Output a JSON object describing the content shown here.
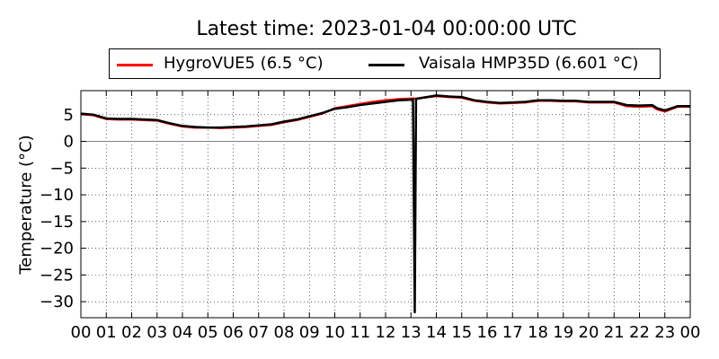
{
  "chart_data": {
    "type": "line",
    "title": "Latest time: 2023-01-04 00:00:00 UTC",
    "xlabel": "",
    "ylabel": "Temperature (°C)",
    "xlim": [
      0,
      24
    ],
    "ylim": [
      -33,
      9.5
    ],
    "x_ticks": [
      "00",
      "01",
      "02",
      "03",
      "04",
      "05",
      "06",
      "07",
      "08",
      "09",
      "10",
      "11",
      "12",
      "13",
      "14",
      "15",
      "16",
      "17",
      "18",
      "19",
      "20",
      "21",
      "22",
      "23",
      "00"
    ],
    "y_ticks": [
      "5",
      "0",
      "−5",
      "−10",
      "−15",
      "−20",
      "−25",
      "−30"
    ],
    "y_tick_values": [
      5,
      0,
      -5,
      -10,
      -15,
      -20,
      -25,
      -30
    ],
    "grid": true,
    "zero_line": true,
    "legend_position": "top",
    "series": [
      {
        "name": "HygroVUE5 (6.5 °C)",
        "color": "#ff0000",
        "x": [
          0,
          0.5,
          1,
          1.5,
          2,
          2.5,
          3,
          3.5,
          4,
          4.5,
          5,
          5.5,
          6,
          6.5,
          7,
          7.5,
          8,
          8.5,
          9,
          9.5,
          10,
          10.5,
          11,
          11.5,
          12,
          12.5,
          13,
          13.1,
          13.2,
          13.5,
          14,
          14.5,
          15,
          15.5,
          16,
          16.5,
          17,
          17.5,
          18,
          18.5,
          19,
          19.5,
          20,
          20.5,
          21,
          21.5,
          22,
          22.5,
          22.7,
          23,
          23.5,
          24
        ],
        "y": [
          5.1,
          4.9,
          4.2,
          4.1,
          4.1,
          4.0,
          3.9,
          3.3,
          2.8,
          2.6,
          2.6,
          2.5,
          2.6,
          2.7,
          2.9,
          3.1,
          3.6,
          4.0,
          4.6,
          5.2,
          6.2,
          6.6,
          7.0,
          7.4,
          7.7,
          7.9,
          8.0,
          8.0,
          8.0,
          8.2,
          8.5,
          8.3,
          8.2,
          7.6,
          7.3,
          7.1,
          7.2,
          7.3,
          7.6,
          7.6,
          7.5,
          7.5,
          7.3,
          7.3,
          7.3,
          6.6,
          6.5,
          6.6,
          6.0,
          5.6,
          6.5,
          6.5
        ]
      },
      {
        "name": "Vaisala HMP35D (6.601 °C)",
        "color": "#000000",
        "x": [
          0,
          0.5,
          1,
          1.5,
          2,
          2.5,
          3,
          3.5,
          4,
          4.5,
          5,
          5.5,
          6,
          6.5,
          7,
          7.5,
          8,
          8.5,
          9,
          9.5,
          10,
          10.5,
          11,
          11.5,
          12,
          12.5,
          13,
          13.08,
          13.15,
          13.2,
          13.25,
          13.5,
          14,
          14.5,
          15,
          15.5,
          16,
          16.5,
          17,
          17.5,
          18,
          18.5,
          19,
          19.5,
          20,
          20.5,
          21,
          21.5,
          22,
          22.5,
          22.7,
          23,
          23.5,
          24
        ],
        "y": [
          5.2,
          5.0,
          4.3,
          4.2,
          4.2,
          4.1,
          4.0,
          3.4,
          2.9,
          2.7,
          2.6,
          2.6,
          2.7,
          2.8,
          3.0,
          3.2,
          3.7,
          4.1,
          4.7,
          5.3,
          6.1,
          6.4,
          6.8,
          7.1,
          7.4,
          7.7,
          7.8,
          7.9,
          -32,
          7.9,
          8.0,
          8.2,
          8.6,
          8.4,
          8.3,
          7.7,
          7.4,
          7.2,
          7.3,
          7.4,
          7.7,
          7.7,
          7.6,
          7.6,
          7.4,
          7.4,
          7.4,
          6.8,
          6.7,
          6.8,
          6.2,
          5.8,
          6.6,
          6.6
        ]
      }
    ]
  }
}
